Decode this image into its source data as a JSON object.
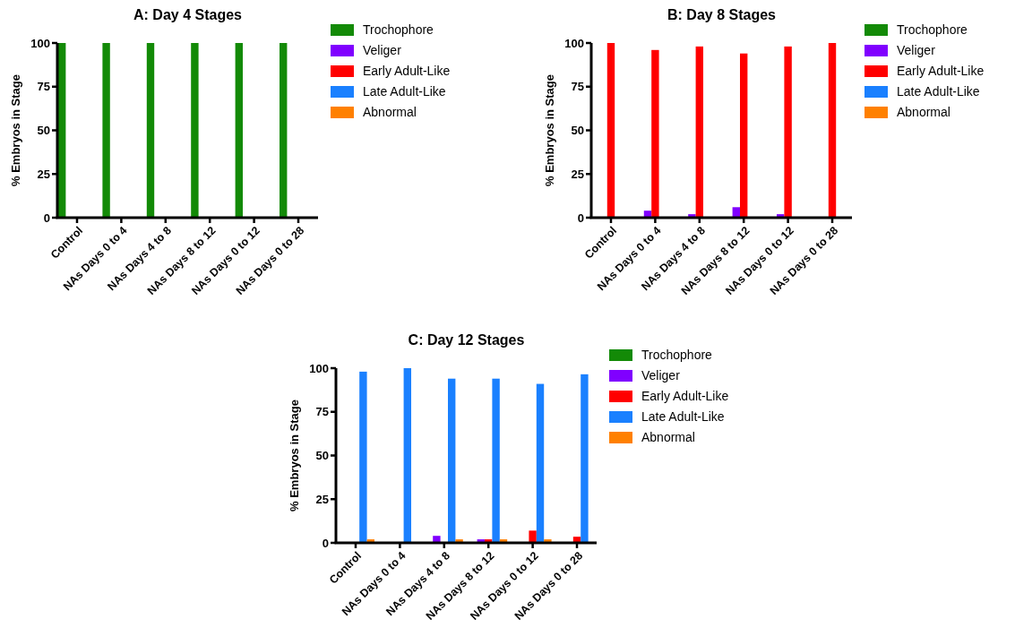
{
  "chart_data": [
    {
      "type": "bar",
      "title": "A: Day 4 Stages",
      "ylabel": "% Embryos in Stage",
      "categories": [
        "Control",
        "NAs Days 0 to 4",
        "NAs Days 4 to 8",
        "NAs Days 8 to 12",
        "NAs Days 0 to 12",
        "NAs Days 0 to 28"
      ],
      "ylim": [
        0,
        100
      ],
      "yticks": [
        0,
        25,
        50,
        75,
        100
      ],
      "legend": "right",
      "series": [
        {
          "name": "Trochophore",
          "color": "#138a07",
          "values": [
            100,
            100,
            100,
            100,
            100,
            100
          ]
        },
        {
          "name": "Veliger",
          "color": "#8000ff",
          "values": [
            0,
            0,
            0,
            0,
            0,
            0
          ]
        },
        {
          "name": "Early Adult-Like",
          "color": "#ff0000",
          "values": [
            0,
            0,
            0,
            0,
            0,
            0
          ]
        },
        {
          "name": "Late Adult-Like",
          "color": "#1a80ff",
          "values": [
            0,
            0,
            0,
            0,
            0,
            0
          ]
        },
        {
          "name": "Abnormal",
          "color": "#ff8000",
          "values": [
            0,
            0,
            0,
            0,
            0,
            0
          ]
        }
      ]
    },
    {
      "type": "bar",
      "title": "B: Day 8 Stages",
      "ylabel": "% Embryos in Stage",
      "categories": [
        "Control",
        "NAs Days 0 to 4",
        "NAs Days 4 to 8",
        "NAs Days 8 to 12",
        "NAs Days 0 to 12",
        "NAs Days 0 to 28"
      ],
      "ylim": [
        0,
        100
      ],
      "yticks": [
        0,
        25,
        50,
        75,
        100
      ],
      "legend": "right",
      "series": [
        {
          "name": "Trochophore",
          "color": "#138a07",
          "values": [
            0,
            0,
            0,
            0,
            0,
            0
          ]
        },
        {
          "name": "Veliger",
          "color": "#8000ff",
          "values": [
            0,
            4,
            2,
            6,
            2,
            0
          ]
        },
        {
          "name": "Early Adult-Like",
          "color": "#ff0000",
          "values": [
            100,
            96,
            98,
            94,
            98,
            100
          ]
        },
        {
          "name": "Late Adult-Like",
          "color": "#1a80ff",
          "values": [
            0,
            0,
            0,
            0,
            0,
            0
          ]
        },
        {
          "name": "Abnormal",
          "color": "#ff8000",
          "values": [
            0,
            0,
            0,
            0,
            0,
            0
          ]
        }
      ]
    },
    {
      "type": "bar",
      "title": "C: Day 12 Stages",
      "ylabel": "% Embryos in Stage",
      "categories": [
        "Control",
        "NAs Days 0 to 4",
        "NAs Days 4 to 8",
        "NAs Days 8 to 12",
        "NAs Days 0 to 12",
        "NAs Days 0 to 28"
      ],
      "ylim": [
        0,
        100
      ],
      "yticks": [
        0,
        25,
        50,
        75,
        100
      ],
      "legend": "right",
      "series": [
        {
          "name": "Trochophore",
          "color": "#138a07",
          "values": [
            0,
            0,
            0,
            0,
            0,
            0
          ]
        },
        {
          "name": "Veliger",
          "color": "#8000ff",
          "values": [
            0,
            0,
            4,
            2,
            0,
            0
          ]
        },
        {
          "name": "Early Adult-Like",
          "color": "#ff0000",
          "values": [
            0,
            0,
            0,
            2,
            7,
            3.5
          ]
        },
        {
          "name": "Late Adult-Like",
          "color": "#1a80ff",
          "values": [
            98,
            100,
            94,
            94,
            91,
            96.5
          ]
        },
        {
          "name": "Abnormal",
          "color": "#ff8000",
          "values": [
            2,
            0,
            2,
            2,
            2,
            0
          ]
        }
      ]
    }
  ]
}
